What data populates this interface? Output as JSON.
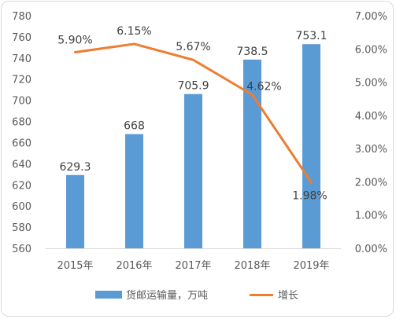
{
  "chart_data": {
    "type": "bar",
    "categories": [
      "2015年",
      "2016年",
      "2017年",
      "2018年",
      "2019年"
    ],
    "series": [
      {
        "name": "货邮运输量，万吨",
        "type": "bar",
        "axis": "left",
        "values": [
          629.3,
          668,
          705.9,
          738.5,
          753.1
        ],
        "labels": [
          "629.3",
          "668",
          "705.9",
          "738.5",
          "753.1"
        ],
        "color": "#5b9bd5"
      },
      {
        "name": "增长",
        "type": "line",
        "axis": "right",
        "values": [
          5.9,
          6.15,
          5.67,
          4.62,
          1.98
        ],
        "labels": [
          "5.90%",
          "6.15%",
          "5.67%",
          "4.62%",
          "1.98%"
        ],
        "color": "#ed7d31"
      }
    ],
    "y_left": {
      "min": 560,
      "max": 780,
      "ticks": [
        "560",
        "580",
        "600",
        "620",
        "640",
        "660",
        "680",
        "700",
        "720",
        "740",
        "760",
        "780"
      ]
    },
    "y_right": {
      "min": 0,
      "max": 7,
      "ticks": [
        "0.00%",
        "1.00%",
        "2.00%",
        "3.00%",
        "4.00%",
        "5.00%",
        "6.00%",
        "7.00%"
      ]
    },
    "grid": false,
    "legend_position": "bottom"
  }
}
